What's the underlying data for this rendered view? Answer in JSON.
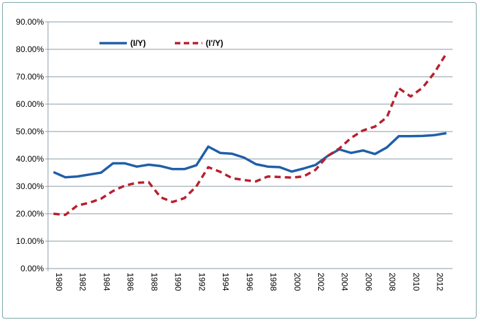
{
  "chart_data": {
    "type": "line",
    "title": "",
    "xlabel": "",
    "ylabel": "",
    "x": [
      1980,
      1981,
      1982,
      1983,
      1984,
      1985,
      1986,
      1987,
      1988,
      1989,
      1990,
      1991,
      1992,
      1993,
      1994,
      1995,
      1996,
      1997,
      1998,
      1999,
      2000,
      2001,
      2002,
      2003,
      2004,
      2005,
      2006,
      2007,
      2008,
      2009,
      2010,
      2011,
      2012,
      2013
    ],
    "x_tick_labels": [
      "1980",
      "1982",
      "1984",
      "1986",
      "1988",
      "1990",
      "1992",
      "1994",
      "1996",
      "1998",
      "2000",
      "2002",
      "2004",
      "2006",
      "2008",
      "2010",
      "2012"
    ],
    "y_tick_labels": [
      "0.00%",
      "10.00%",
      "20.00%",
      "30.00%",
      "40.00%",
      "50.00%",
      "60.00%",
      "70.00%",
      "80.00%",
      "90.00%"
    ],
    "ylim": [
      0,
      90
    ],
    "grid": "horizontal",
    "legend_placement": "top-left",
    "series": [
      {
        "name": "(I/Y)",
        "color": "#1f5fa8",
        "style": "solid",
        "values": [
          35.2,
          33.3,
          33.6,
          34.3,
          35.0,
          38.4,
          38.4,
          37.2,
          37.9,
          37.4,
          36.3,
          36.3,
          37.7,
          44.5,
          42.2,
          41.9,
          40.5,
          38.1,
          37.2,
          37.0,
          35.4,
          36.5,
          37.8,
          41.0,
          43.5,
          42.2,
          43.1,
          41.8,
          44.2,
          48.3,
          48.3,
          48.4,
          48.7,
          49.4
        ]
      },
      {
        "name": "(I'/Y)",
        "color": "#b8202e",
        "style": "dashed",
        "values": [
          20.0,
          19.6,
          23.0,
          24.0,
          25.5,
          28.3,
          30.3,
          31.3,
          31.5,
          26.0,
          24.3,
          25.7,
          30.0,
          37.0,
          35.3,
          33.0,
          32.3,
          31.8,
          33.6,
          33.4,
          33.2,
          33.6,
          36.0,
          41.0,
          43.8,
          47.7,
          50.4,
          51.8,
          55.2,
          65.8,
          62.8,
          66.0,
          71.5,
          78.5
        ]
      }
    ]
  }
}
